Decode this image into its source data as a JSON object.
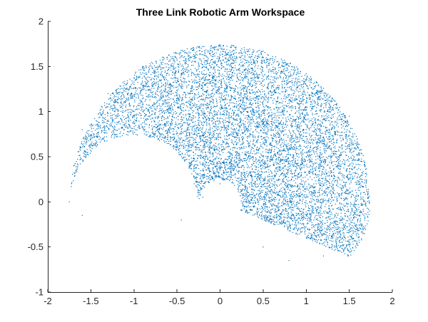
{
  "chart_data": {
    "type": "scatter",
    "title": "Three Link Robotic Arm Workspace",
    "xlabel": "",
    "ylabel": "",
    "xlim": [
      -2,
      2
    ],
    "ylim": [
      -1,
      2
    ],
    "x_ticks": [
      -2,
      -1.5,
      -1,
      -0.5,
      0,
      0.5,
      1,
      1.5,
      2
    ],
    "y_ticks": [
      -1,
      -0.5,
      0,
      0.5,
      1,
      1.5,
      2
    ],
    "x_tick_labels": [
      "-2",
      "-1.5",
      "-1",
      "-0.5",
      "0",
      "0.5",
      "1",
      "1.5",
      "2"
    ],
    "y_tick_labels": [
      "-1",
      "-0.5",
      "0",
      "0.5",
      "1",
      "1.5",
      "2"
    ],
    "grid": false,
    "legend": "none",
    "marker_color": "#0072BD",
    "sample_points": {
      "x": [
        0.0,
        0.5,
        1.0,
        1.5,
        1.7,
        1.6,
        1.2,
        0.8,
        0.5,
        0.3,
        0.0,
        -0.3,
        -0.2,
        -0.45,
        -0.9,
        -1.3,
        -1.6,
        -1.7,
        -1.75,
        -1.6,
        1.0,
        1.3,
        0.9,
        0.6,
        0.2
      ],
      "y": [
        1.74,
        1.67,
        1.42,
        0.95,
        0.3,
        -0.3,
        -0.6,
        -0.65,
        -0.5,
        -0.1,
        0.2,
        0.2,
        0.05,
        -0.2,
        1.5,
        1.2,
        0.8,
        0.4,
        0.0,
        -0.15,
        0.8,
        0.2,
        -0.2,
        0.6,
        0.9
      ]
    },
    "workspace_model": {
      "outer_radius": 1.74,
      "theta_range_deg": [
        -22,
        180
      ],
      "inner_arc": {
        "center": [
          -1.0,
          0.0
        ],
        "radius": 0.74
      },
      "lower_lobe": {
        "center": [
          0.85,
          0.0
        ],
        "radius": 0.9
      },
      "hole": {
        "center": [
          0.0,
          0.0
        ],
        "radius": 0.24
      },
      "point_count": 9000,
      "seed": 7
    }
  }
}
